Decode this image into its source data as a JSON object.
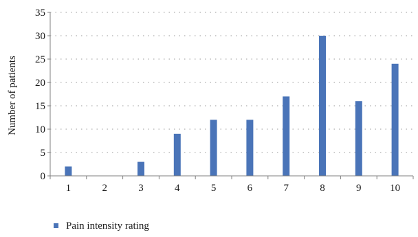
{
  "chart_data": {
    "type": "bar",
    "categories": [
      "1",
      "2",
      "3",
      "4",
      "5",
      "6",
      "7",
      "8",
      "9",
      "10"
    ],
    "series": [
      {
        "name": "Pain intensity rating",
        "values": [
          2,
          0,
          3,
          9,
          12,
          12,
          17,
          30,
          16,
          24
        ]
      }
    ],
    "xlabel": "",
    "ylabel": "Number of patients",
    "ylim": [
      0,
      35
    ],
    "yticks": [
      0,
      5,
      10,
      15,
      20,
      25,
      30,
      35
    ],
    "grid": true,
    "legend": "bottom-left",
    "colors": {
      "bar": "#4a74b8",
      "grid": "#9a9a9a",
      "axis": "#7f7f7f"
    }
  }
}
